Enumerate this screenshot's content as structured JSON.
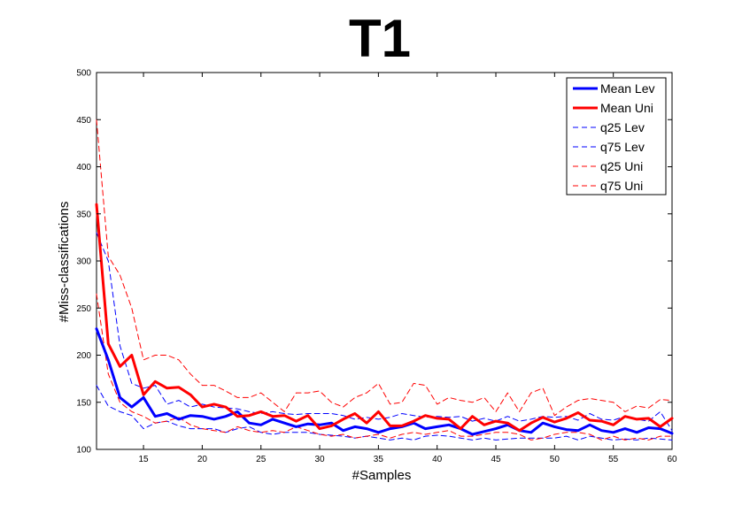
{
  "chart_data": {
    "type": "line",
    "title": "T1",
    "xlabel": "#Samples",
    "ylabel": "#Miss-classifications",
    "xlim": [
      11,
      60
    ],
    "ylim": [
      100,
      500
    ],
    "xticks": [
      15,
      20,
      25,
      30,
      35,
      40,
      45,
      50,
      55,
      60
    ],
    "yticks": [
      100,
      150,
      200,
      250,
      300,
      350,
      400,
      450,
      500
    ],
    "grid": false,
    "legend_position": "top-right",
    "x": [
      11,
      12,
      13,
      14,
      15,
      16,
      17,
      18,
      19,
      20,
      21,
      22,
      23,
      24,
      25,
      26,
      27,
      28,
      29,
      30,
      31,
      32,
      33,
      34,
      35,
      36,
      37,
      38,
      39,
      40,
      41,
      42,
      43,
      44,
      45,
      46,
      47,
      48,
      49,
      50,
      51,
      52,
      53,
      54,
      55,
      56,
      57,
      58,
      59,
      60
    ],
    "series": [
      {
        "name": "Mean Lev",
        "color": "#0000ff",
        "style": "solid",
        "width": 3,
        "values": [
          228,
          195,
          155,
          145,
          155,
          135,
          138,
          132,
          136,
          135,
          132,
          135,
          140,
          128,
          126,
          132,
          128,
          124,
          127,
          126,
          128,
          120,
          124,
          122,
          118,
          122,
          124,
          128,
          122,
          124,
          126,
          122,
          116,
          119,
          122,
          126,
          120,
          118,
          128,
          124,
          121,
          120,
          126,
          120,
          118,
          122,
          118,
          123,
          122,
          117
        ]
      },
      {
        "name": "Mean Uni",
        "color": "#ff0000",
        "style": "solid",
        "width": 3,
        "values": [
          360,
          212,
          188,
          200,
          158,
          172,
          165,
          166,
          158,
          145,
          148,
          145,
          135,
          136,
          140,
          135,
          136,
          130,
          136,
          122,
          125,
          132,
          138,
          128,
          140,
          125,
          125,
          130,
          136,
          133,
          132,
          122,
          135,
          126,
          130,
          128,
          120,
          128,
          134,
          129,
          133,
          139,
          131,
          130,
          126,
          135,
          132,
          133,
          124,
          133
        ]
      },
      {
        "name": "q25 Lev",
        "color": "#0000ff",
        "style": "dashed",
        "width": 1,
        "values": [
          168,
          146,
          140,
          136,
          122,
          128,
          130,
          125,
          122,
          122,
          122,
          118,
          122,
          124,
          118,
          116,
          118,
          118,
          118,
          116,
          115,
          114,
          112,
          114,
          112,
          110,
          112,
          110,
          114,
          115,
          114,
          112,
          110,
          112,
          110,
          111,
          112,
          112,
          112,
          112,
          114,
          110,
          114,
          112,
          110,
          111,
          110,
          112,
          111,
          110
        ]
      },
      {
        "name": "q75 Lev",
        "color": "#0000ff",
        "style": "dashed",
        "width": 1,
        "values": [
          330,
          300,
          210,
          170,
          165,
          168,
          148,
          152,
          145,
          148,
          145,
          144,
          143,
          140,
          138,
          140,
          138,
          137,
          138,
          138,
          138,
          136,
          132,
          134,
          132,
          134,
          138,
          136,
          134,
          135,
          134,
          135,
          130,
          133,
          130,
          135,
          130,
          132,
          135,
          134,
          135,
          131,
          138,
          132,
          131,
          135,
          132,
          130,
          140,
          120
        ]
      },
      {
        "name": "q25 Uni",
        "color": "#ff0000",
        "style": "dashed",
        "width": 1,
        "values": [
          265,
          180,
          150,
          140,
          135,
          128,
          130,
          134,
          126,
          122,
          120,
          118,
          124,
          120,
          118,
          120,
          118,
          124,
          120,
          116,
          114,
          116,
          112,
          114,
          116,
          112,
          116,
          118,
          116,
          118,
          120,
          114,
          114,
          116,
          118,
          118,
          116,
          110,
          112,
          116,
          118,
          118,
          116,
          110,
          114,
          110,
          112,
          110,
          114,
          114
        ]
      },
      {
        "name": "q75 Uni",
        "color": "#ff0000",
        "style": "dashed",
        "width": 1,
        "values": [
          450,
          305,
          285,
          250,
          195,
          200,
          200,
          195,
          180,
          168,
          168,
          162,
          155,
          155,
          160,
          150,
          140,
          160,
          160,
          162,
          150,
          145,
          155,
          160,
          170,
          148,
          150,
          170,
          168,
          148,
          155,
          152,
          150,
          155,
          140,
          160,
          140,
          160,
          165,
          136,
          145,
          152,
          154,
          152,
          150,
          140,
          146,
          144,
          153,
          152
        ]
      }
    ]
  }
}
